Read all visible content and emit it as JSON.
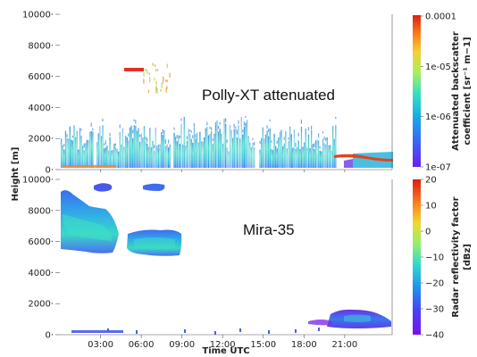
{
  "chart_data": [
    {
      "type": "heatmap",
      "title": "",
      "annotation": "Polly-XT attenuated",
      "xlabel": "",
      "ylabel": "Height [m]",
      "ylim": [
        0,
        10000
      ],
      "yticks": [
        "0",
        "2000",
        "4000",
        "6000",
        "8000",
        "10000"
      ],
      "xticks": [
        "03:00",
        "06:00",
        "09:00",
        "12:00",
        "15:00",
        "18:00",
        "21:00"
      ],
      "colorbar": {
        "label_line1": "Attenuated backscatter",
        "label_line2": "coefficient [sr⁻¹ m−1]",
        "scale": "log",
        "ticks": [
          "0.0001",
          "1e-05",
          "1e-06",
          "1e-07"
        ],
        "range": [
          1e-07,
          0.0001
        ]
      },
      "features": [
        {
          "region": "boundary layer",
          "time_utc": [
            0.5,
            19.5
          ],
          "height_m": [
            0,
            2200
          ]
        },
        {
          "region": "residual layer",
          "time_utc": [
            19.5,
            24.0
          ],
          "height_m": [
            300,
            900
          ]
        },
        {
          "region": "cloud base (strong backscatter)",
          "time_utc": [
            19.3,
            24.0
          ],
          "height_m": [
            500,
            1000
          ]
        },
        {
          "region": "mid-level cloud",
          "time_utc": [
            5.0,
            6.5
          ],
          "height_m": [
            6100,
            6600
          ]
        },
        {
          "region": "aerosol/ice streaks",
          "time_utc": [
            6.0,
            8.5
          ],
          "height_m": [
            4500,
            7000
          ]
        }
      ]
    },
    {
      "type": "heatmap",
      "title": "",
      "annotation": "Mira-35",
      "xlabel": "Time UTC",
      "ylabel": "Height [m]",
      "ylim": [
        0,
        10000
      ],
      "yticks": [
        "0",
        "2000",
        "4000",
        "6000",
        "8000",
        "10000"
      ],
      "xticks": [
        "03:00",
        "06:00",
        "09:00",
        "12:00",
        "15:00",
        "18:00",
        "21:00"
      ],
      "colorbar": {
        "label_line1": "Radar reflectivity factor",
        "label_line2": "[dBz]",
        "scale": "linear",
        "ticks": [
          "20",
          "10",
          "0",
          "−10",
          "−20",
          "−30",
          "−40"
        ],
        "range": [
          -40,
          20
        ]
      },
      "features": [
        {
          "region": "ice cloud",
          "time_utc": [
            0.3,
            4.6
          ],
          "height_m": [
            5300,
            8800
          ]
        },
        {
          "region": "ice cloud",
          "time_utc": [
            4.6,
            8.7
          ],
          "height_m": [
            5000,
            6700
          ]
        },
        {
          "region": "fall streak",
          "time_utc": [
            2.5,
            3.5
          ],
          "height_m": [
            9300,
            9800
          ]
        },
        {
          "region": "fall streak",
          "time_utc": [
            6.3,
            7.3
          ],
          "height_m": [
            9400,
            9900
          ]
        },
        {
          "region": "low cloud",
          "time_utc": [
            19.5,
            23.3
          ],
          "height_m": [
            100,
            1500
          ]
        },
        {
          "region": "near-surface echo",
          "time_utc": [
            0.5,
            5.5
          ],
          "height_m": [
            0,
            400
          ]
        }
      ]
    }
  ]
}
